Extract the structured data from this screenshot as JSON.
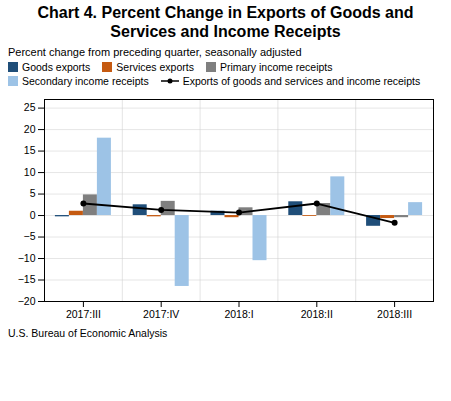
{
  "chart_data": {
    "type": "bar",
    "title": "Chart 4. Percent Change in Exports of Goods and Services and Income Receipts",
    "subtitle": "Percent change from preceding quarter, seasonally adjusted",
    "source": "U.S. Bureau of Economic Analysis",
    "categories": [
      "2017:III",
      "2017:IV",
      "2018:I",
      "2018:II",
      "2018:III"
    ],
    "series": [
      {
        "name": "Goods exports",
        "color": "#1f4e79",
        "values": [
          -0.3,
          2.5,
          1.0,
          3.2,
          -2.5
        ]
      },
      {
        "name": "Services exports",
        "color": "#c55a11",
        "values": [
          1.0,
          -0.3,
          -0.5,
          -0.2,
          -0.7
        ]
      },
      {
        "name": "Primary income receipts",
        "color": "#7f7f7f",
        "values": [
          4.8,
          3.3,
          1.8,
          2.8,
          -0.5
        ]
      },
      {
        "name": "Secondary income receipts",
        "color": "#9dc3e6",
        "values": [
          18.0,
          -16.5,
          -10.5,
          9.0,
          3.0
        ]
      },
      {
        "name": "Exports of goods and services and income receipts",
        "type": "line",
        "color": "#000000",
        "marker": "circle",
        "values": [
          2.8,
          1.3,
          0.7,
          2.8,
          -1.7
        ]
      }
    ],
    "ylim": [
      -20,
      27
    ],
    "yticks": [
      -20,
      -15,
      -10,
      -5,
      0,
      5,
      10,
      15,
      20,
      25
    ],
    "grid": true,
    "legend": "top"
  }
}
